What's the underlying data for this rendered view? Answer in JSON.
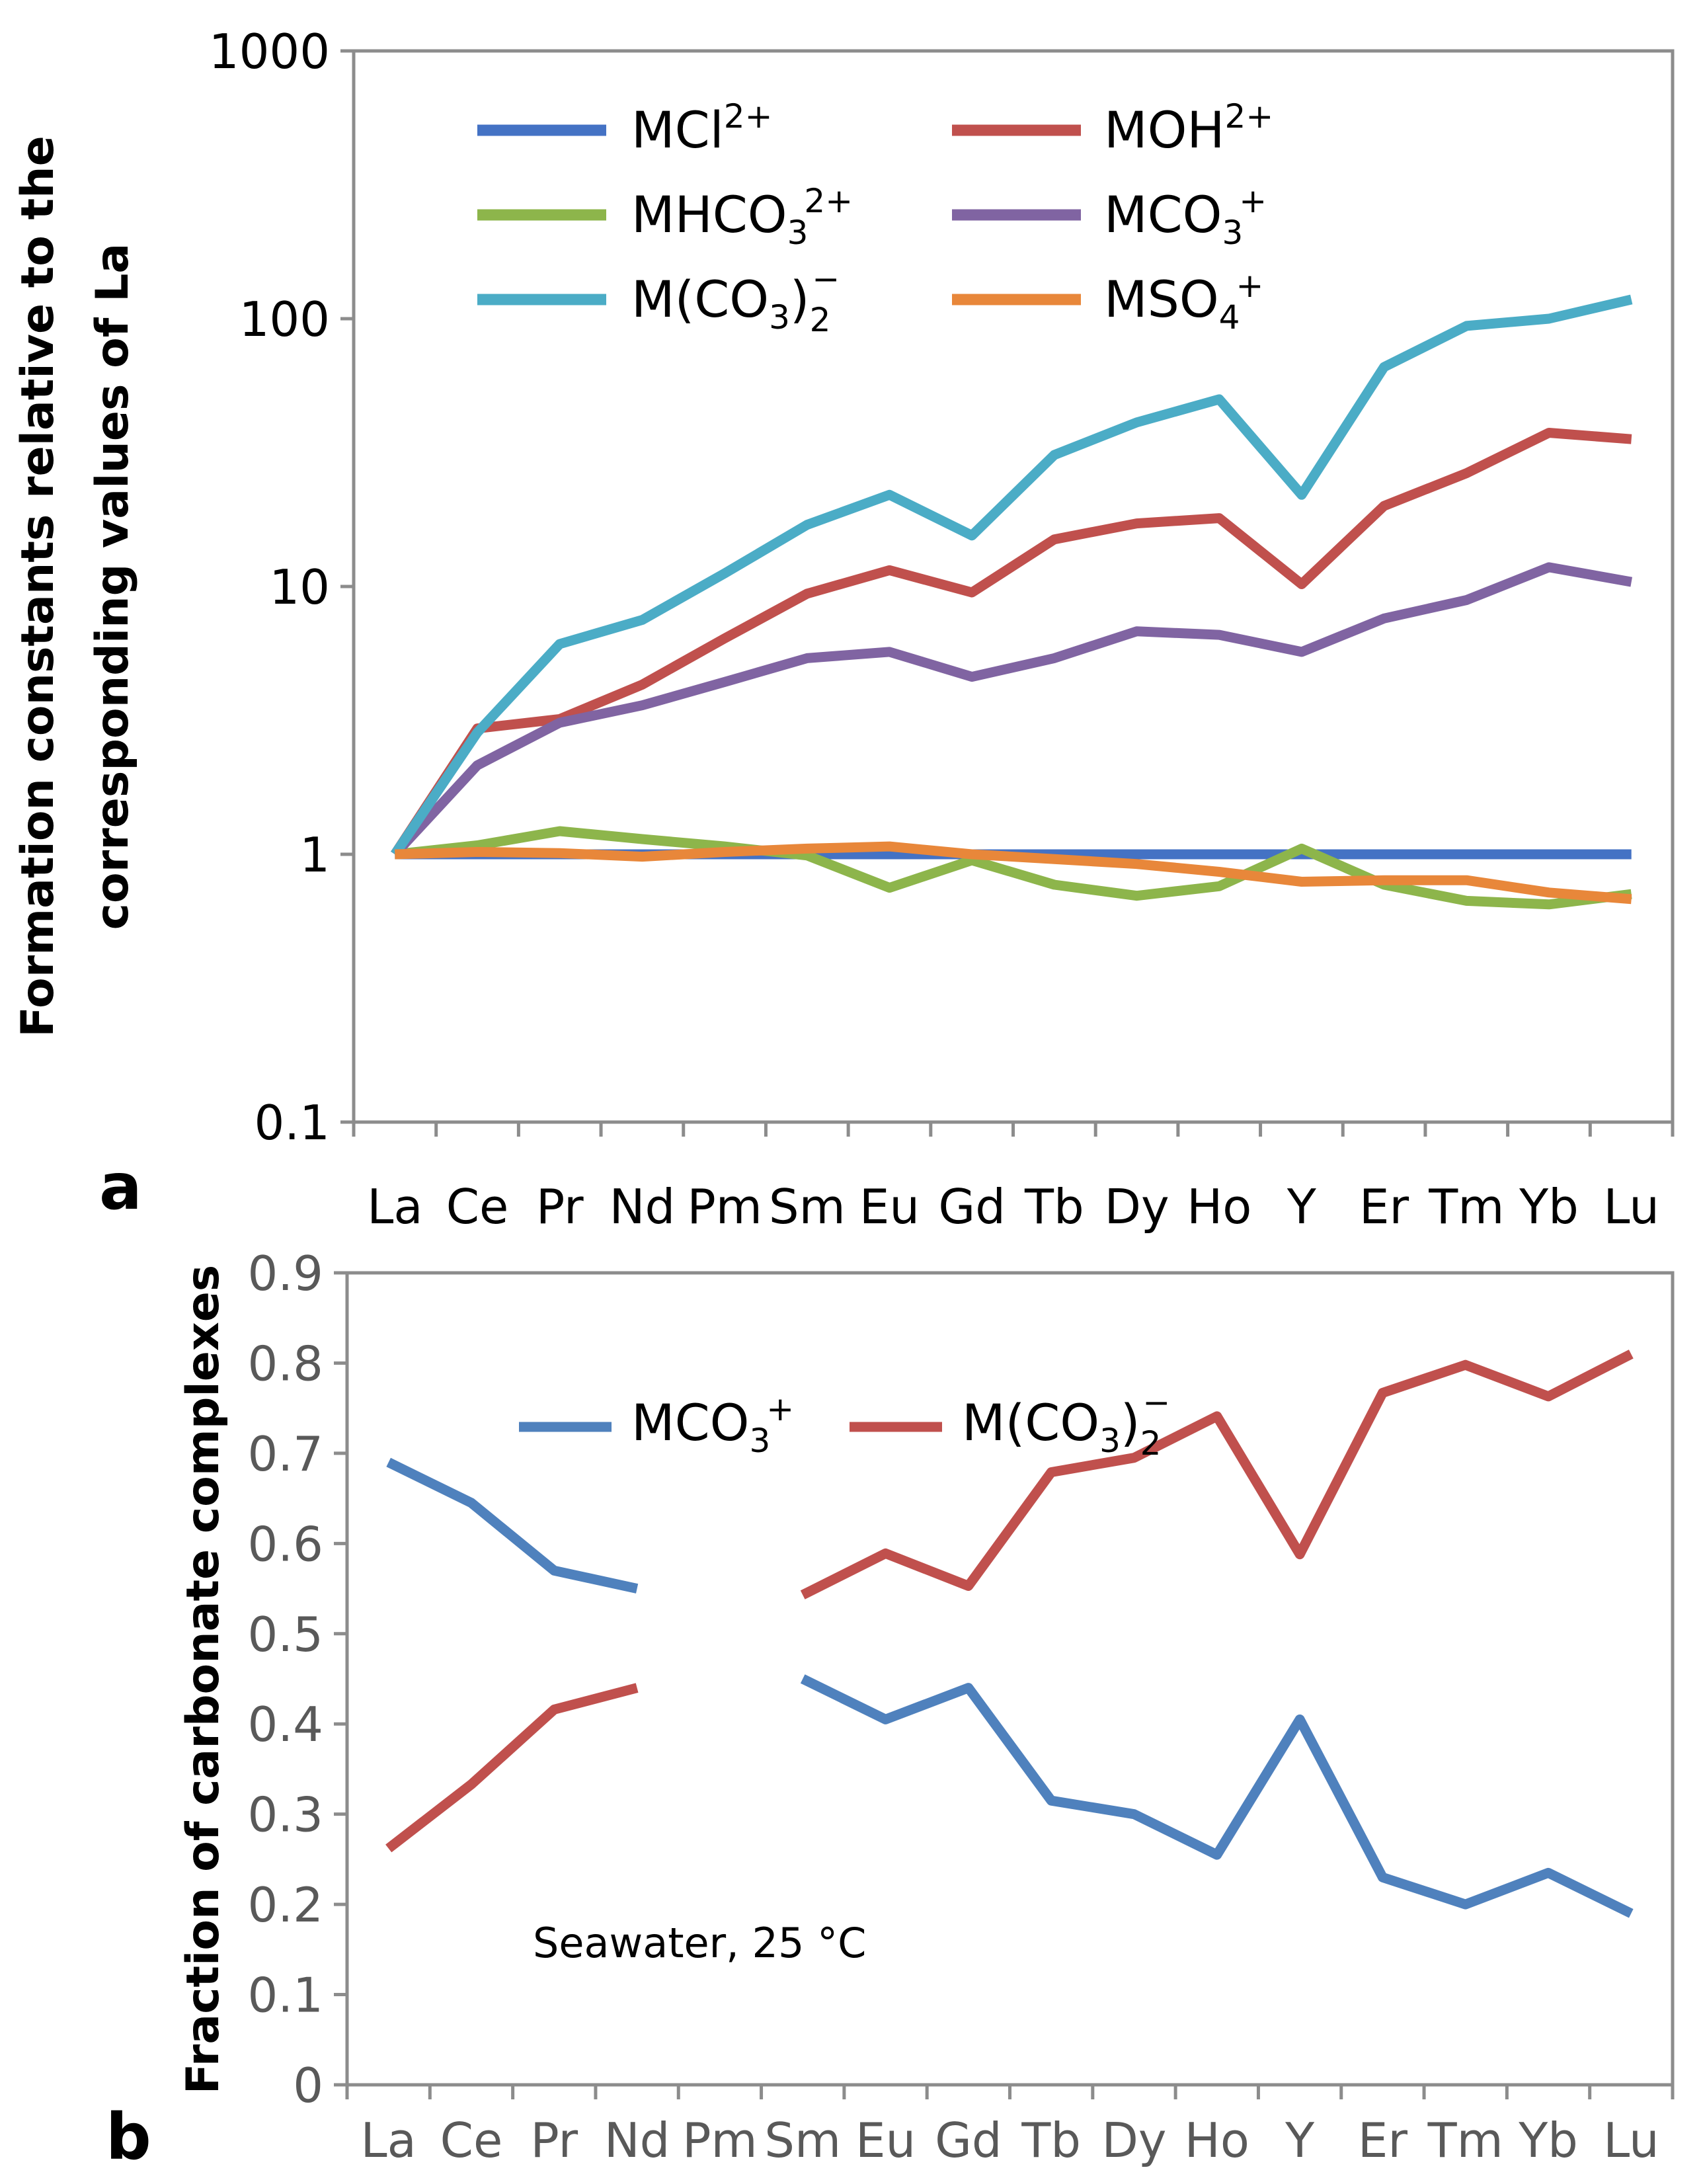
{
  "chart_data": [
    {
      "type": "line",
      "panel_label": "a",
      "yscale": "log",
      "ylim": [
        0.1,
        1000
      ],
      "yticks": [
        "0.1",
        "1",
        "10",
        "100",
        "1000"
      ],
      "ytick_values": [
        0.1,
        1,
        10,
        100,
        1000
      ],
      "ylabel_line1": "Formation constants relative to the",
      "ylabel_line2": "corresponding values of La",
      "xlabel": "",
      "categories": [
        "La",
        "Ce",
        "Pr",
        "Nd",
        "Pm",
        "Sm",
        "Eu",
        "Gd",
        "Tb",
        "Dy",
        "Ho",
        "Y",
        "Er",
        "Tm",
        "Yb",
        "Lu"
      ],
      "legend_placement": "top",
      "series": [
        {
          "name": "MCl²⁺",
          "base": "MCl",
          "sub": "",
          "sup": "2+",
          "color": "#4472c4",
          "values": [
            1,
            1,
            1,
            1,
            1,
            1,
            1,
            1,
            1,
            1,
            1,
            1,
            1,
            1,
            1,
            1
          ]
        },
        {
          "name": "MOH²⁺",
          "base": "MOH",
          "sub": "",
          "sup": "2+",
          "color": "#c0504d",
          "values": [
            1,
            2.95,
            3.2,
            4.3,
            6.4,
            9.4,
            11.5,
            9.5,
            15,
            17.2,
            18,
            10.2,
            20,
            26.5,
            37.5,
            35.5
          ]
        },
        {
          "name": "MHCO₃²⁺",
          "base": "MHCO",
          "sub": "3",
          "sup": "2+",
          "color": "#8db54b",
          "values": [
            1,
            1.08,
            1.22,
            1.14,
            1.07,
            0.99,
            0.75,
            0.95,
            0.77,
            0.7,
            0.76,
            1.05,
            0.77,
            0.67,
            0.65,
            0.71
          ]
        },
        {
          "name": "MCO₃⁺",
          "base": "MCO",
          "sub": "3",
          "sup": "+",
          "color": "#8064a2",
          "values": [
            1,
            2.15,
            3.1,
            3.6,
            4.4,
            5.4,
            5.7,
            4.6,
            5.4,
            6.8,
            6.6,
            5.7,
            7.6,
            8.9,
            11.8,
            10.4
          ]
        },
        {
          "name": "M(CO₃)₂⁻",
          "base": "M(CO",
          "sub": "3",
          "close": ")",
          "sub2": "2",
          "sup": "−",
          "color": "#4bacc6",
          "values": [
            1,
            2.85,
            6.1,
            7.5,
            11.2,
            17,
            22,
            15.5,
            31,
            41,
            50,
            22,
            66,
            94,
            100,
            118
          ]
        },
        {
          "name": "MSO₄⁺",
          "base": "MSO",
          "sub": "4",
          "sup": "+",
          "color": "#e8873a",
          "values": [
            1,
            1.02,
            1.01,
            0.98,
            1.02,
            1.05,
            1.07,
            1.0,
            0.96,
            0.92,
            0.86,
            0.79,
            0.8,
            0.8,
            0.72,
            0.68
          ]
        }
      ]
    },
    {
      "type": "line",
      "panel_label": "b",
      "yscale": "linear",
      "ylim": [
        0,
        0.9
      ],
      "yticks": [
        "0",
        "0.1",
        "0.2",
        "0.3",
        "0.4",
        "0.5",
        "0.6",
        "0.7",
        "0.8",
        "0.9"
      ],
      "ytick_values": [
        0,
        0.1,
        0.2,
        0.3,
        0.4,
        0.5,
        0.6,
        0.7,
        0.8,
        0.9
      ],
      "ylabel": "Fraction of carbonate complexes",
      "xlabel": "",
      "categories": [
        "La",
        "Ce",
        "Pr",
        "Nd",
        "Pm",
        "Sm",
        "Eu",
        "Gd",
        "Tb",
        "Dy",
        "Ho",
        "Y",
        "Er",
        "Tm",
        "Yb",
        "Lu"
      ],
      "annotation": "Seawater, 25  °C",
      "legend_placement": "top-center",
      "series": [
        {
          "name": "MCO₃⁺",
          "base": "MCO",
          "sub": "3",
          "sup": "+",
          "color": "#4f81bd",
          "values": [
            0.69,
            0.645,
            0.57,
            0.55,
            null,
            0.45,
            0.405,
            0.44,
            0.315,
            0.3,
            0.255,
            0.405,
            0.23,
            0.2,
            0.235,
            0.19
          ]
        },
        {
          "name": "M(CO₃)₂⁻",
          "base": "M(CO",
          "sub": "3",
          "close": ")",
          "sub2": "2",
          "sup": "−",
          "color": "#c0504d",
          "values": [
            0.262,
            0.333,
            0.416,
            0.44,
            null,
            0.543,
            0.589,
            0.553,
            0.679,
            0.695,
            0.741,
            0.588,
            0.767,
            0.798,
            0.763,
            0.81
          ]
        }
      ]
    }
  ]
}
